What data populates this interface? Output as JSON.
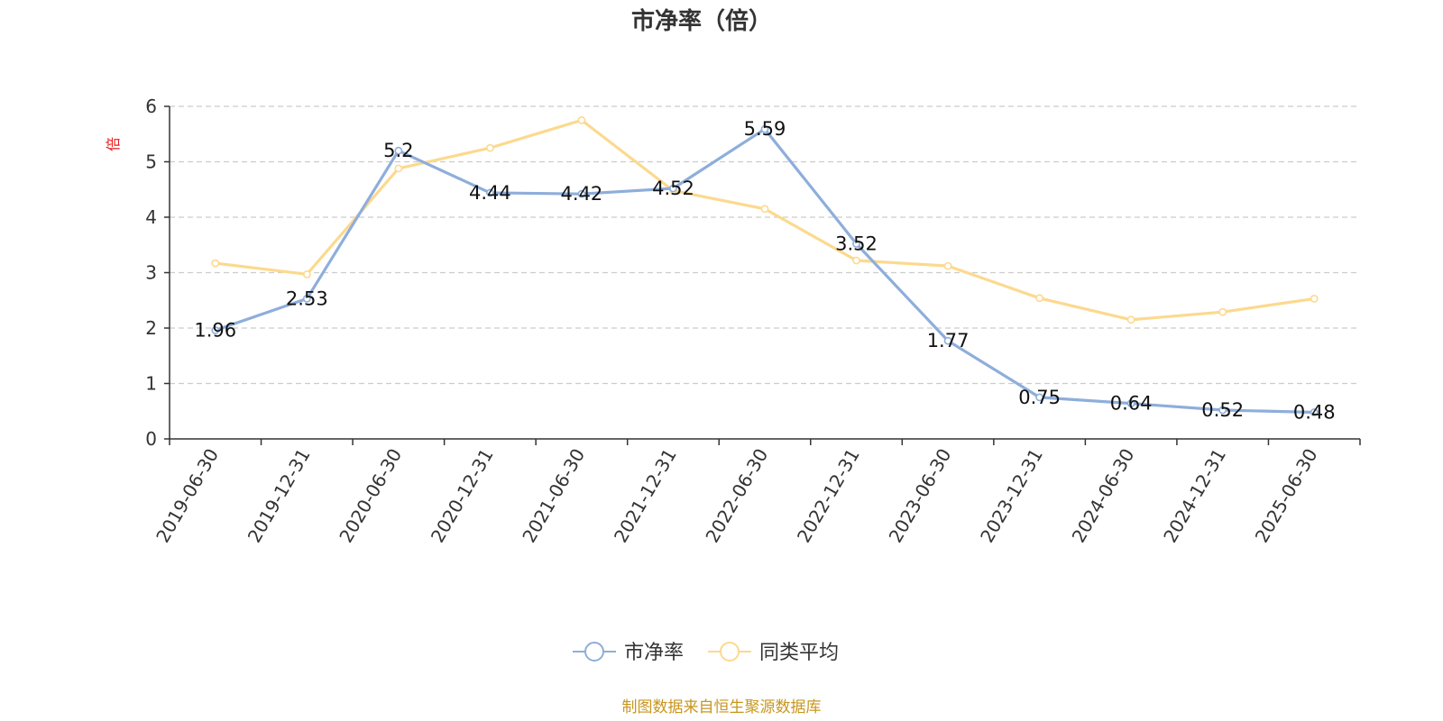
{
  "chart_data": {
    "type": "line",
    "title": "市净率（倍）",
    "ylabel": "倍",
    "ylim": [
      0,
      6
    ],
    "yticks": [
      0,
      1,
      2,
      3,
      4,
      5,
      6
    ],
    "grid": true,
    "legend_position": "bottom-center",
    "categories": [
      "2019-06-30",
      "2019-12-31",
      "2020-06-30",
      "2020-12-31",
      "2021-06-30",
      "2021-12-31",
      "2022-06-30",
      "2022-12-31",
      "2023-06-30",
      "2023-12-31",
      "2024-06-30",
      "2024-12-31",
      "2025-06-30"
    ],
    "series": [
      {
        "name": "市净率",
        "color": "#8eaedb",
        "values": [
          1.96,
          2.53,
          5.2,
          4.44,
          4.42,
          4.52,
          5.59,
          3.52,
          1.77,
          0.75,
          0.64,
          0.52,
          0.48
        ],
        "labels": [
          "1.96",
          "2.53",
          "5.2",
          "4.44",
          "4.42",
          "4.52",
          "5.59",
          "3.52",
          "1.77",
          "0.75",
          "0.64",
          "0.52",
          "0.48"
        ]
      },
      {
        "name": "同类平均",
        "color": "#fcd98e",
        "values": [
          3.17,
          2.97,
          4.88,
          5.25,
          5.75,
          4.48,
          4.15,
          3.22,
          3.12,
          2.54,
          2.15,
          2.29,
          2.53
        ]
      }
    ],
    "source": "制图数据来自恒生聚源数据库"
  }
}
